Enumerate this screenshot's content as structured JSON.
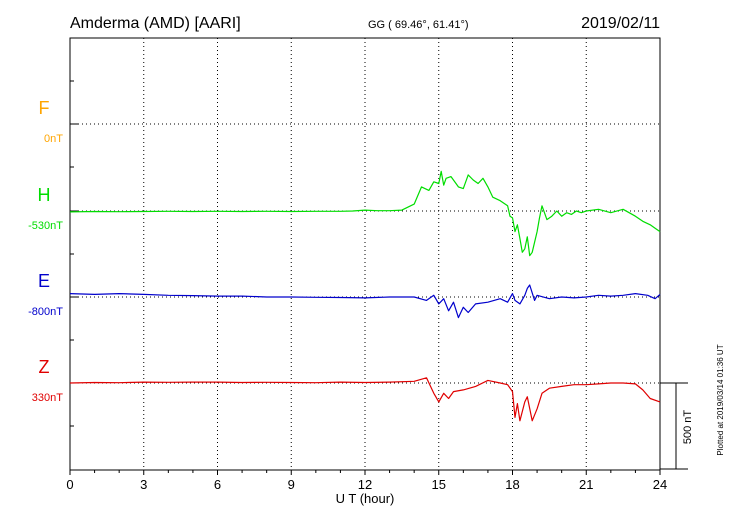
{
  "header": {
    "station": "Amderma (AMD)  [AARI]",
    "coords": "GG ( 69.46°,  61.41°)",
    "date": "2019/02/11"
  },
  "scale_label": "500 nT",
  "plotted_note": "Plotted at 2019/03/14 01:36 UT",
  "chart_data": {
    "type": "line",
    "xlabel": "U T (hour)",
    "xlim": [
      0,
      24
    ],
    "xticks": [
      0,
      3,
      6,
      9,
      12,
      15,
      18,
      21,
      24
    ],
    "scale_bar_nT": 500,
    "grid": true,
    "series": [
      {
        "name": "F",
        "base_label": "0nT",
        "color": "#FFA500",
        "x": [],
        "y": []
      },
      {
        "name": "H",
        "base_label": "-530nT",
        "color": "#00DD00",
        "x": [
          0,
          1,
          2,
          3,
          4,
          5,
          6,
          7,
          8,
          9,
          10,
          11,
          11.5,
          12,
          12.5,
          13,
          13.5,
          14,
          14.3,
          14.6,
          14.8,
          15,
          15.1,
          15.2,
          15.3,
          15.5,
          15.7,
          15.8,
          16,
          16.2,
          16.4,
          16.6,
          16.8,
          17,
          17.2,
          17.5,
          17.8,
          17.9,
          18,
          18.1,
          18.2,
          18.3,
          18.4,
          18.5,
          18.6,
          18.7,
          18.8,
          19,
          19.1,
          19.2,
          19.4,
          19.6,
          19.8,
          20,
          20.2,
          20.4,
          20.6,
          20.8,
          21,
          21.5,
          22,
          22.5,
          23,
          23.3,
          23.6,
          23.8,
          24
        ],
        "y": [
          -5,
          -3,
          -4,
          -3,
          -2,
          -3,
          -2,
          -3,
          -2,
          -3,
          -2,
          -2,
          0,
          5,
          2,
          2,
          5,
          40,
          140,
          120,
          170,
          160,
          230,
          150,
          190,
          200,
          160,
          140,
          130,
          210,
          180,
          160,
          190,
          140,
          80,
          60,
          30,
          -30,
          -40,
          -120,
          -80,
          -160,
          -240,
          -220,
          -150,
          -260,
          -240,
          -120,
          -40,
          30,
          -50,
          -30,
          0,
          -30,
          -10,
          -20,
          0,
          -10,
          0,
          10,
          -10,
          10,
          -30,
          -60,
          -80,
          -100,
          -120
        ]
      },
      {
        "name": "E",
        "base_label": "-800nT",
        "color": "#0000CC",
        "x": [
          0,
          1,
          2,
          3,
          4,
          5,
          6,
          7,
          8,
          9,
          10,
          11,
          12,
          13,
          14,
          14.5,
          14.8,
          15,
          15.2,
          15.4,
          15.6,
          15.8,
          16,
          16.2,
          16.5,
          17,
          17.5,
          17.8,
          18,
          18.1,
          18.3,
          18.5,
          18.6,
          18.7,
          18.9,
          19,
          19.5,
          20,
          20.5,
          21,
          21.5,
          22,
          22.5,
          23,
          23.5,
          23.8,
          24
        ],
        "y": [
          20,
          15,
          20,
          15,
          10,
          8,
          5,
          5,
          0,
          0,
          -2,
          -3,
          -5,
          0,
          0,
          -20,
          10,
          -40,
          -10,
          -80,
          -30,
          -120,
          -60,
          -90,
          -40,
          -30,
          -10,
          -30,
          20,
          -20,
          -40,
          10,
          50,
          70,
          -20,
          10,
          -10,
          0,
          -5,
          0,
          10,
          5,
          10,
          20,
          10,
          -10,
          15
        ]
      },
      {
        "name": "Z",
        "base_label": "330nT",
        "color": "#E00000",
        "x": [
          0,
          1,
          2,
          3,
          4,
          5,
          6,
          7,
          8,
          9,
          10,
          11,
          12,
          13,
          14,
          14.5,
          14.8,
          15,
          15.2,
          15.4,
          15.6,
          16,
          16.5,
          17,
          17.5,
          17.8,
          18,
          18.1,
          18.2,
          18.3,
          18.5,
          18.6,
          18.8,
          19,
          19.2,
          19.5,
          20,
          20.5,
          21,
          21.5,
          22,
          22.5,
          23,
          23.3,
          23.6,
          24
        ],
        "y": [
          0,
          3,
          2,
          5,
          4,
          5,
          5,
          3,
          4,
          3,
          2,
          5,
          3,
          5,
          10,
          30,
          -60,
          -110,
          -60,
          -90,
          -50,
          -40,
          -20,
          15,
          0,
          -10,
          -50,
          -200,
          -120,
          -220,
          -110,
          -80,
          -220,
          -150,
          -60,
          -30,
          -20,
          -10,
          -10,
          -5,
          0,
          0,
          -5,
          -40,
          -90,
          -110
        ]
      }
    ]
  }
}
